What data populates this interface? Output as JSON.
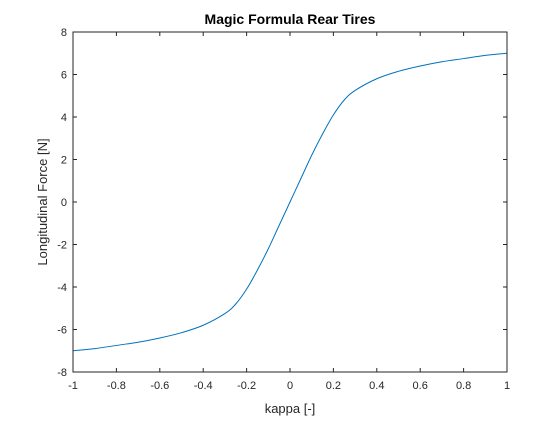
{
  "chart_data": {
    "type": "line",
    "title": "Magic Formula Rear Tires",
    "xlabel": "kappa [-]",
    "ylabel": "Longitudinal Force [N]",
    "xlim": [
      -1,
      1
    ],
    "ylim": [
      -8,
      8
    ],
    "xticks": [
      "-1",
      "-0.8",
      "-0.6",
      "-0.4",
      "-0.2",
      "0",
      "0.2",
      "0.4",
      "0.6",
      "0.8",
      "1"
    ],
    "xtick_values": [
      -1,
      -0.8,
      -0.6,
      -0.4,
      -0.2,
      0,
      0.2,
      0.4,
      0.6,
      0.8,
      1
    ],
    "yticks": [
      "-8",
      "-6",
      "-4",
      "-2",
      "0",
      "2",
      "4",
      "6",
      "8"
    ],
    "ytick_values": [
      -8,
      -6,
      -4,
      -2,
      0,
      2,
      4,
      6,
      8
    ],
    "grid": false,
    "line_color": "#0072bd",
    "series": [
      {
        "x": [
          -1,
          -0.9,
          -0.8,
          -0.7,
          -0.6,
          -0.5,
          -0.4,
          -0.3,
          -0.25,
          -0.2,
          -0.15,
          -0.1,
          -0.05,
          0,
          0.05,
          0.1,
          0.15,
          0.2,
          0.25,
          0.3,
          0.4,
          0.5,
          0.6,
          0.7,
          0.8,
          0.9,
          1
        ],
        "y": [
          -7.0,
          -6.9,
          -6.75,
          -6.6,
          -6.4,
          -6.15,
          -5.8,
          -5.25,
          -4.8,
          -4.1,
          -3.2,
          -2.2,
          -1.1,
          0,
          1.1,
          2.2,
          3.2,
          4.1,
          4.8,
          5.25,
          5.8,
          6.15,
          6.4,
          6.6,
          6.75,
          6.9,
          7.0
        ]
      }
    ]
  }
}
